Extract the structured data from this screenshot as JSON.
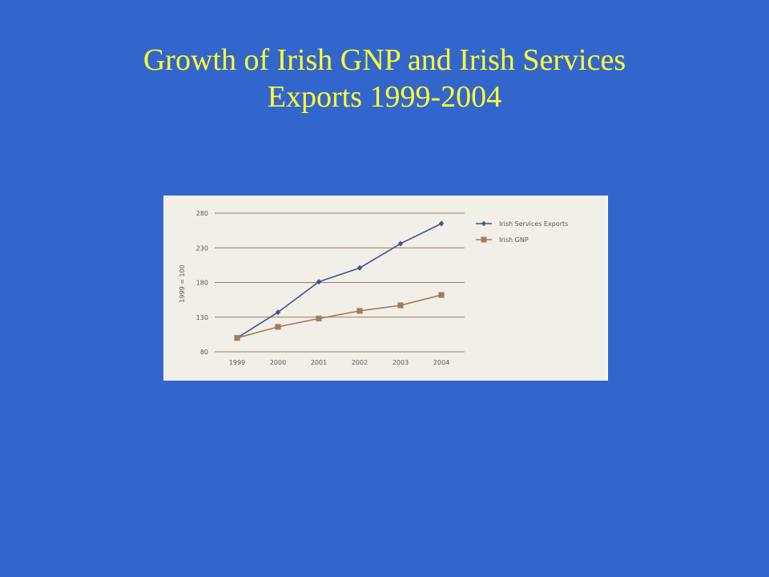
{
  "slide": {
    "title_line1": "Growth of Irish GNP and Irish Services",
    "title_line2": "Exports 1999-2004"
  },
  "chart_data": {
    "type": "line",
    "title": "Growth of Irish GNP and Irish Services Exports 1999-2004",
    "xlabel": "",
    "ylabel": "1999 = 100",
    "categories": [
      "1999",
      "2000",
      "2001",
      "2002",
      "2003",
      "2004"
    ],
    "ylim": [
      80,
      280
    ],
    "yticks": [
      80,
      130,
      180,
      230,
      280
    ],
    "grid": "horizontal",
    "legend_position": "top-right",
    "series": [
      {
        "name": "Irish Services Exports",
        "marker": "diamond",
        "color": "#3d5590",
        "values": [
          100,
          137,
          181,
          201,
          236,
          265
        ]
      },
      {
        "name": "Irish GNP",
        "marker": "square",
        "color": "#a57c5a",
        "values": [
          100,
          116,
          128,
          139,
          147,
          162
        ]
      }
    ],
    "grid_color": "#a0785a"
  }
}
